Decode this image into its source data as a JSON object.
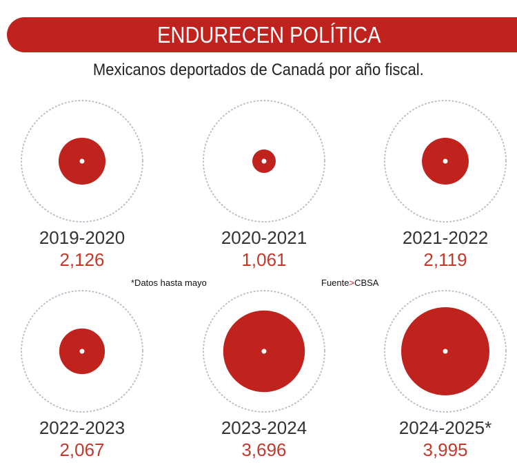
{
  "chart_data": {
    "type": "bubble",
    "title": "ENDURECEN POLÍTICA",
    "subtitle": "Mexicanos deportados de Canadá por año fiscal.",
    "categories": [
      "2019-2020",
      "2020-2021",
      "2021-2022",
      "2022-2023",
      "2023-2024",
      "2024-2025*"
    ],
    "values": [
      2126,
      1061,
      2119,
      2067,
      3696,
      3995
    ],
    "value_labels": [
      "2,126",
      "1,061",
      "2,119",
      "2,067",
      "3,696",
      "3,995"
    ],
    "colors": {
      "bubble": "#c0221d",
      "value_text": "#c0392b",
      "guide_ring": "#b8bcc8"
    },
    "footnote": "*Datos hasta mayo",
    "source_label": "Fuente",
    "source_separator": ">",
    "source": "CBSA"
  }
}
